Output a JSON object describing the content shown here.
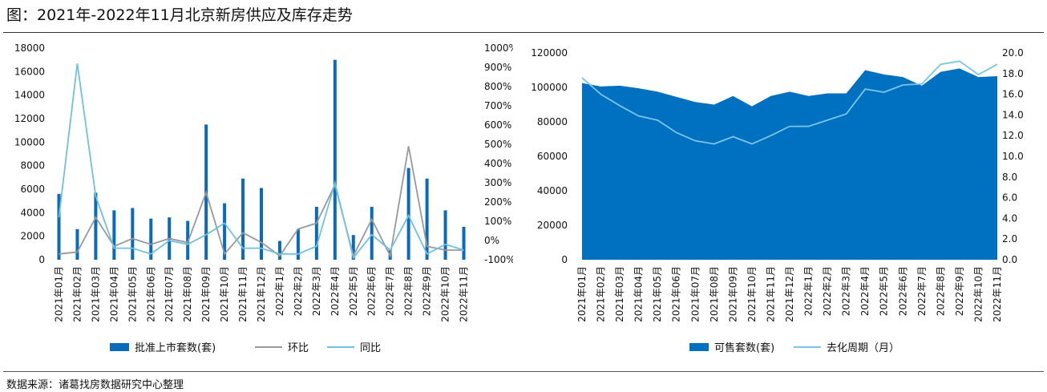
{
  "page": {
    "title": "图：2021年-2022年11月北京新房供应及库存走势",
    "source": "数据来源：诸葛找房数据研究中心整理"
  },
  "colors": {
    "bar": "#0a6bbd",
    "hb": "#999999",
    "tb": "#6ec1e0",
    "area": "#0070c0",
    "cycle": "#79c6e4"
  },
  "chart_data": [
    {
      "type": "bar",
      "categories": [
        "2021年01月",
        "2021年02月",
        "2021年03月",
        "2021年04月",
        "2021年05月",
        "2021年06月",
        "2021年07月",
        "2021年08月",
        "2021年09月",
        "2021年10月",
        "2021年11月",
        "2021年12月",
        "2022年1月",
        "2022年2月",
        "2022年3月",
        "2022年4月",
        "2022年5月",
        "2022年6月",
        "2022年7月",
        "2022年8月",
        "2022年9月",
        "2022年10月",
        "2022年11月"
      ],
      "series": [
        {
          "name": "批准上市套数(套)",
          "type": "bar",
          "axis": "left",
          "values": [
            5600,
            2600,
            5700,
            4200,
            4400,
            3500,
            3600,
            3300,
            11500,
            4800,
            6900,
            6100,
            1600,
            2600,
            4500,
            17000,
            2100,
            4500,
            900,
            7800,
            6900,
            4200,
            2800
          ]
        },
        {
          "name": "环比",
          "type": "line",
          "axis": "right",
          "unit": "%",
          "values": [
            -70,
            -60,
            120,
            -30,
            10,
            -20,
            10,
            -10,
            250,
            -70,
            40,
            -10,
            -80,
            60,
            90,
            290,
            -80,
            110,
            -80,
            490,
            -30,
            -50,
            -50
          ]
        },
        {
          "name": "同比",
          "type": "line",
          "axis": "right",
          "unit": "%",
          "values": [
            120,
            920,
            230,
            -40,
            -40,
            -70,
            0,
            -20,
            30,
            90,
            -40,
            -40,
            -70,
            -70,
            -30,
            300,
            -90,
            30,
            -50,
            130,
            -70,
            -20,
            -50
          ]
        }
      ],
      "yticks_left": [
        "0",
        "2000",
        "4000",
        "6000",
        "8000",
        "10000",
        "12000",
        "14000",
        "16000",
        "18000"
      ],
      "ylim_left": [
        0,
        18000
      ],
      "yticks_right": [
        "-100%",
        "0%",
        "100%",
        "200%",
        "300%",
        "400%",
        "500%",
        "600%",
        "700%",
        "800%",
        "900%",
        "1000%"
      ],
      "ylim_right": [
        -100,
        1000
      ],
      "legend": [
        "批准上市套数(套)",
        "环比",
        "同比"
      ]
    },
    {
      "type": "area",
      "categories": [
        "2021年01月",
        "2021年02月",
        "2021年03月",
        "2021年04月",
        "2021年05月",
        "2021年06月",
        "2021年07月",
        "2021年08月",
        "2021年09月",
        "2021年10月",
        "2021年11月",
        "2021年12月",
        "2022年1月",
        "2022年2月",
        "2022年3月",
        "2022年4月",
        "2022年5月",
        "2022年6月",
        "2022年7月",
        "2022年8月",
        "2022年9月",
        "2022年10月",
        "2022年11月"
      ],
      "series": [
        {
          "name": "可售套数(套)",
          "type": "area",
          "axis": "left",
          "values": [
            102500,
            100500,
            101000,
            99500,
            97500,
            94500,
            91500,
            90000,
            95000,
            89000,
            95000,
            97500,
            95000,
            96500,
            96500,
            110000,
            107500,
            106000,
            101000,
            109000,
            111000,
            106000,
            106500
          ]
        },
        {
          "name": "去化周期（月）",
          "type": "line",
          "axis": "right",
          "values": [
            17.6,
            16.0,
            14.9,
            13.9,
            13.5,
            12.3,
            11.5,
            11.2,
            11.9,
            11.2,
            12.0,
            12.9,
            12.9,
            13.5,
            14.1,
            16.5,
            16.2,
            16.9,
            17.0,
            18.9,
            19.2,
            17.9,
            18.9
          ]
        }
      ],
      "yticks_left": [
        "0",
        "20000",
        "40000",
        "60000",
        "80000",
        "100000",
        "120000"
      ],
      "ylim_left": [
        0,
        120000
      ],
      "yticks_right": [
        "0.0",
        "2.0",
        "4.0",
        "6.0",
        "8.0",
        "10.0",
        "12.0",
        "14.0",
        "16.0",
        "18.0",
        "20.0"
      ],
      "ylim_right": [
        0,
        20
      ],
      "legend": [
        "可售套数(套)",
        "去化周期（月）"
      ]
    }
  ]
}
